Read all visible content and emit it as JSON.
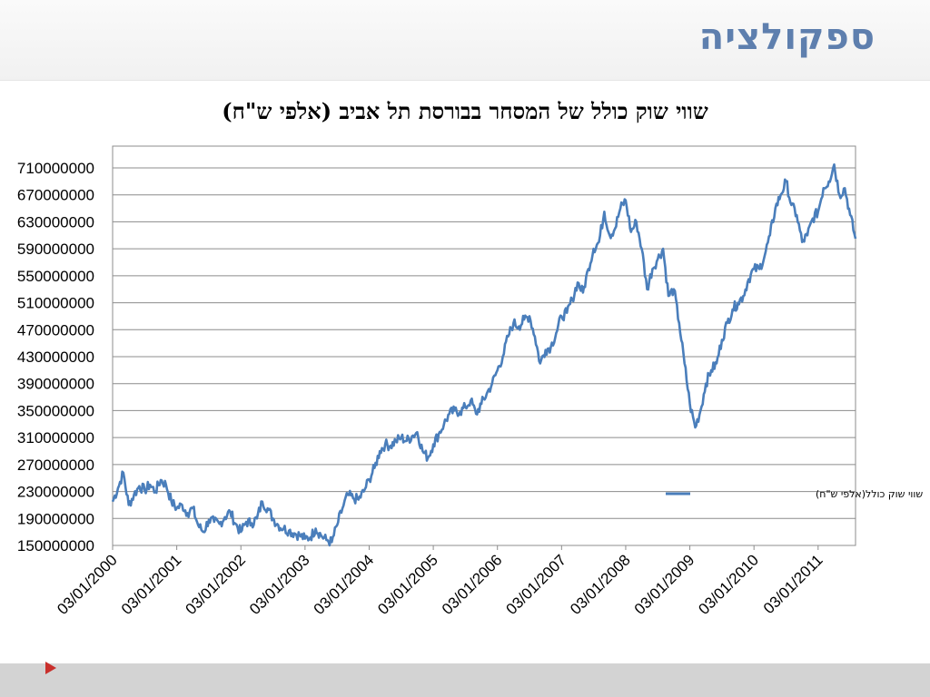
{
  "slide": {
    "title": "ספקולציה"
  },
  "colors": {
    "title": "#5e7fae",
    "series": "#4a7ebb",
    "gridline": "#8c8c8c",
    "footer": "#d3d3d3",
    "footer_marker": "#c9302c"
  },
  "chart_data": {
    "type": "line",
    "title": "שווי שוק כולל  של המסחר בבורסת תל אביב (אלפי ש\"ח)",
    "xlabel": "",
    "ylabel": "",
    "ylim": [
      150000000,
      710000000
    ],
    "y_ticks": [
      "710000000",
      "670000000",
      "630000000",
      "590000000",
      "550000000",
      "510000000",
      "470000000",
      "430000000",
      "390000000",
      "350000000",
      "310000000",
      "270000000",
      "230000000",
      "190000000",
      "150000000"
    ],
    "x_tick_labels": [
      "03/01/2000",
      "03/01/2001",
      "03/01/2002",
      "03/01/2003",
      "03/01/2004",
      "03/01/2005",
      "03/01/2006",
      "03/01/2007",
      "03/01/2008",
      "03/01/2009",
      "03/01/2010",
      "03/01/2011"
    ],
    "x_range": [
      "03/01/2000",
      "06/2011"
    ],
    "grid": true,
    "legend_position": "right",
    "series": [
      {
        "name": "שווי שוק כולל(אלפי ש\"ח)",
        "x": [
          "2000-01",
          "2000-02",
          "2000-03",
          "2000-04",
          "2000-05",
          "2000-06",
          "2000-07",
          "2000-08",
          "2000-09",
          "2000-10",
          "2000-11",
          "2000-12",
          "2001-01",
          "2001-02",
          "2001-03",
          "2001-04",
          "2001-05",
          "2001-06",
          "2001-07",
          "2001-08",
          "2001-09",
          "2001-10",
          "2001-11",
          "2001-12",
          "2002-01",
          "2002-02",
          "2002-03",
          "2002-04",
          "2002-05",
          "2002-06",
          "2002-07",
          "2002-08",
          "2002-09",
          "2002-10",
          "2002-11",
          "2002-12",
          "2003-01",
          "2003-02",
          "2003-03",
          "2003-04",
          "2003-05",
          "2003-06",
          "2003-07",
          "2003-08",
          "2003-09",
          "2003-10",
          "2003-11",
          "2003-12",
          "2004-01",
          "2004-02",
          "2004-03",
          "2004-04",
          "2004-05",
          "2004-06",
          "2004-07",
          "2004-08",
          "2004-09",
          "2004-10",
          "2004-11",
          "2004-12",
          "2005-01",
          "2005-02",
          "2005-03",
          "2005-04",
          "2005-05",
          "2005-06",
          "2005-07",
          "2005-08",
          "2005-09",
          "2005-10",
          "2005-11",
          "2005-12",
          "2006-01",
          "2006-02",
          "2006-03",
          "2006-04",
          "2006-05",
          "2006-06",
          "2006-07",
          "2006-08",
          "2006-09",
          "2006-10",
          "2006-11",
          "2006-12",
          "2007-01",
          "2007-02",
          "2007-03",
          "2007-04",
          "2007-05",
          "2007-06",
          "2007-07",
          "2007-08",
          "2007-09",
          "2007-10",
          "2007-11",
          "2007-12",
          "2008-01",
          "2008-02",
          "2008-03",
          "2008-04",
          "2008-05",
          "2008-06",
          "2008-07",
          "2008-08",
          "2008-09",
          "2008-10",
          "2008-11",
          "2008-12",
          "2009-01",
          "2009-02",
          "2009-03",
          "2009-04",
          "2009-05",
          "2009-06",
          "2009-07",
          "2009-08",
          "2009-09",
          "2009-10",
          "2009-11",
          "2009-12",
          "2010-01",
          "2010-02",
          "2010-03",
          "2010-04",
          "2010-05",
          "2010-06",
          "2010-07",
          "2010-08",
          "2010-09",
          "2010-10",
          "2010-11",
          "2010-12",
          "2011-01",
          "2011-02",
          "2011-03",
          "2011-04",
          "2011-05",
          "2011-06",
          "2011-07",
          "2011-08"
        ],
        "values": [
          215000000,
          235000000,
          258000000,
          210000000,
          225000000,
          238000000,
          232000000,
          240000000,
          230000000,
          247000000,
          240000000,
          215000000,
          205000000,
          210000000,
          198000000,
          205000000,
          180000000,
          170000000,
          188000000,
          185000000,
          182000000,
          192000000,
          200000000,
          182000000,
          170000000,
          185000000,
          183000000,
          190000000,
          215000000,
          205000000,
          190000000,
          180000000,
          175000000,
          172000000,
          168000000,
          165000000,
          160000000,
          162000000,
          175000000,
          165000000,
          158000000,
          155000000,
          180000000,
          205000000,
          225000000,
          220000000,
          218000000,
          230000000,
          248000000,
          265000000,
          290000000,
          300000000,
          298000000,
          305000000,
          310000000,
          305000000,
          312000000,
          318000000,
          290000000,
          280000000,
          300000000,
          315000000,
          330000000,
          345000000,
          350000000,
          348000000,
          355000000,
          365000000,
          345000000,
          360000000,
          375000000,
          390000000,
          410000000,
          430000000,
          460000000,
          480000000,
          475000000,
          485000000,
          490000000,
          460000000,
          420000000,
          440000000,
          445000000,
          465000000,
          490000000,
          495000000,
          515000000,
          540000000,
          525000000,
          560000000,
          590000000,
          600000000,
          645000000,
          610000000,
          620000000,
          650000000,
          662000000,
          615000000,
          630000000,
          590000000,
          530000000,
          560000000,
          575000000,
          590000000,
          520000000,
          530000000,
          480000000,
          420000000,
          360000000,
          325000000,
          350000000,
          390000000,
          410000000,
          420000000,
          455000000,
          480000000,
          500000000,
          510000000,
          520000000,
          545000000,
          560000000,
          560000000,
          580000000,
          610000000,
          650000000,
          670000000,
          690000000,
          655000000,
          640000000,
          600000000,
          610000000,
          635000000,
          645000000,
          680000000,
          690000000,
          715000000,
          670000000,
          680000000,
          640000000,
          605000000
        ]
      }
    ]
  }
}
